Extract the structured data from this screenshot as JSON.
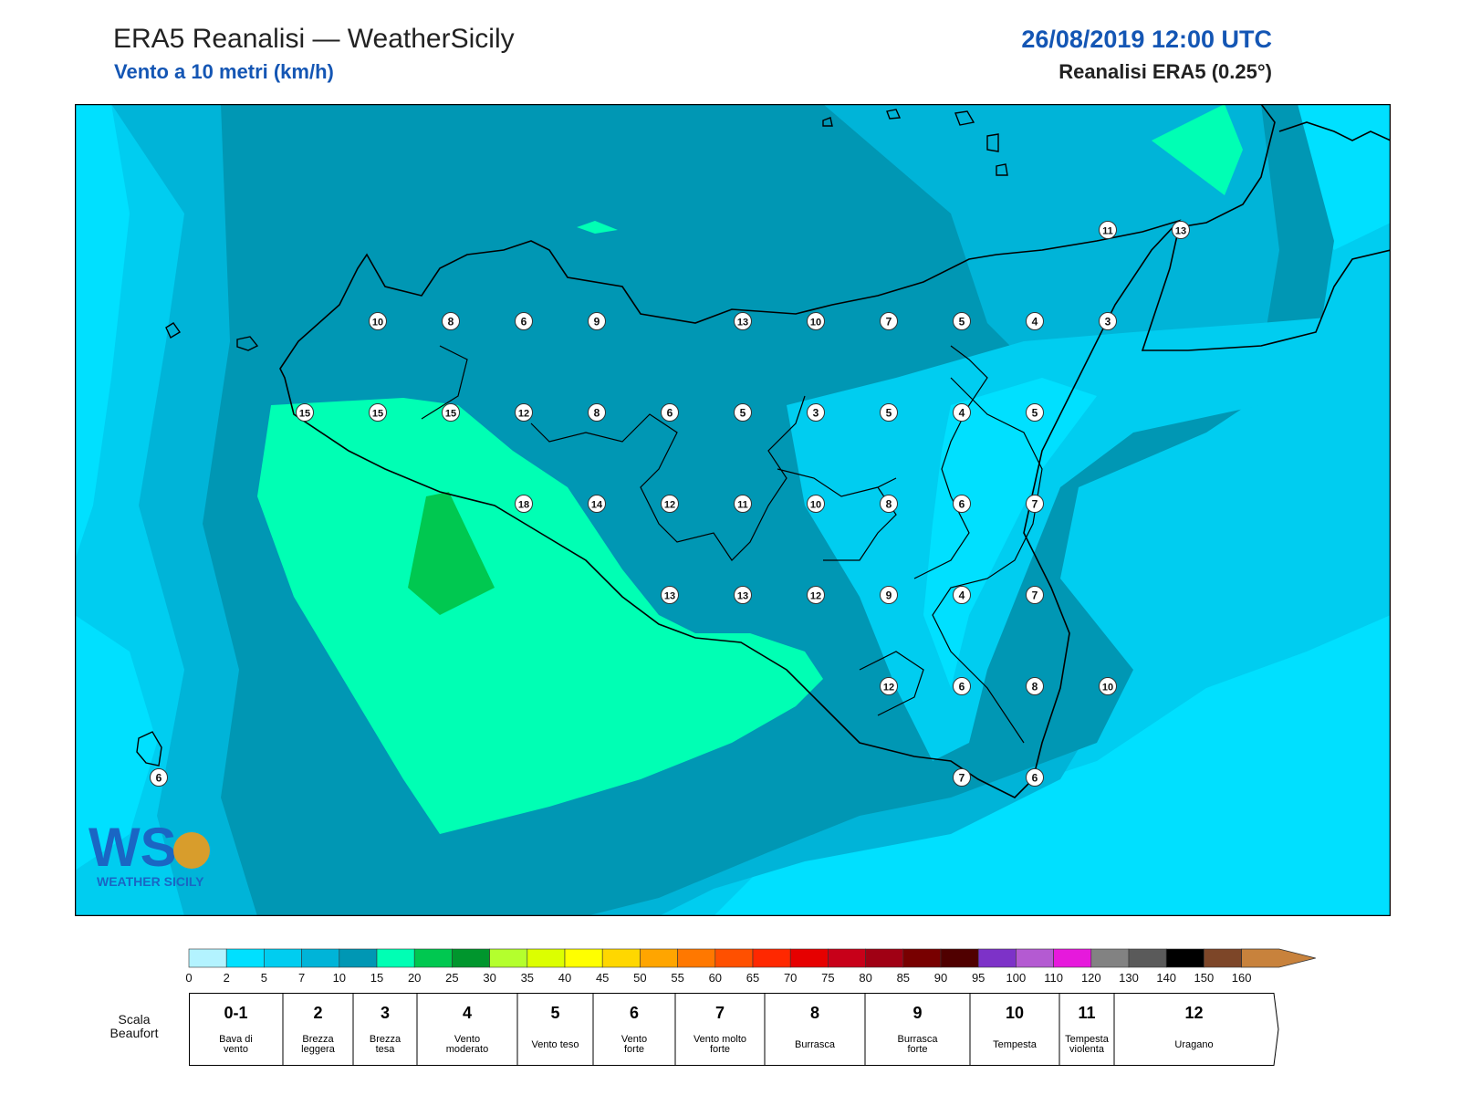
{
  "header": {
    "title": "ERA5 Reanalisi — WeatherSicily",
    "subtitle": "Vento a 10 metri (km/h)",
    "datetime": "26/08/2019 12:00 UTC",
    "model": "Reanalisi ERA5 (0.25°)"
  },
  "map": {
    "colors": {
      "sea_light": "#00dfff",
      "band_0_2": "#b3f3ff",
      "band_2_5": "#00e0ff",
      "band_5_7": "#00cdf0",
      "band_7_10": "#00b4d8",
      "band_10_15": "#0097b4",
      "band_15_20": "#00ffb4",
      "band_20_25": "#00c850",
      "band_25_30": "#00962d",
      "coast": "#000000"
    },
    "station_values": [
      {
        "value": "10"
      },
      {
        "value": "8"
      },
      {
        "value": "6"
      },
      {
        "value": "9"
      },
      {
        "value": "13"
      },
      {
        "value": "10"
      },
      {
        "value": "7"
      },
      {
        "value": "5"
      },
      {
        "value": "4"
      },
      {
        "value": "3"
      },
      {
        "value": "11"
      },
      {
        "value": "13"
      },
      {
        "value": "15"
      },
      {
        "value": "15"
      },
      {
        "value": "15"
      },
      {
        "value": "12"
      },
      {
        "value": "8"
      },
      {
        "value": "6"
      },
      {
        "value": "5"
      },
      {
        "value": "3"
      },
      {
        "value": "5"
      },
      {
        "value": "4"
      },
      {
        "value": "5"
      },
      {
        "value": "18"
      },
      {
        "value": "14"
      },
      {
        "value": "12"
      },
      {
        "value": "11"
      },
      {
        "value": "10"
      },
      {
        "value": "8"
      },
      {
        "value": "6"
      },
      {
        "value": "7"
      },
      {
        "value": "13"
      },
      {
        "value": "13"
      },
      {
        "value": "12"
      },
      {
        "value": "9"
      },
      {
        "value": "4"
      },
      {
        "value": "7"
      },
      {
        "value": "12"
      },
      {
        "value": "6"
      },
      {
        "value": "8"
      },
      {
        "value": "10"
      },
      {
        "value": "7"
      },
      {
        "value": "6"
      },
      {
        "value": "6"
      }
    ]
  },
  "logo": {
    "letters": "WS",
    "text": "WEATHER SICILY"
  },
  "legend": {
    "ticks": [
      "0",
      "2",
      "5",
      "7",
      "10",
      "15",
      "20",
      "25",
      "30",
      "35",
      "40",
      "45",
      "50",
      "55",
      "60",
      "65",
      "70",
      "75",
      "80",
      "85",
      "90",
      "95",
      "100",
      "110",
      "120",
      "130",
      "140",
      "150",
      "160"
    ],
    "colors": [
      "#b3f3ff",
      "#00e0ff",
      "#00cdf0",
      "#00b4d8",
      "#0097b4",
      "#00ffb4",
      "#00c850",
      "#00962d",
      "#b4ff2d",
      "#dcff00",
      "#ffff00",
      "#ffd700",
      "#ffa500",
      "#ff7800",
      "#ff5000",
      "#ff2800",
      "#e60000",
      "#c80019",
      "#a00014",
      "#780000",
      "#500000",
      "#7d32c8",
      "#b45ad2",
      "#e619dc",
      "#828282",
      "#5a5a5a",
      "#000000",
      "#7d4628",
      "#c8823c"
    ],
    "scale_label": "Scala Beaufort",
    "beaufort": [
      {
        "num": "0-1",
        "label": "Bava di vento"
      },
      {
        "num": "2",
        "label": "Brezza leggera"
      },
      {
        "num": "3",
        "label": "Brezza tesa"
      },
      {
        "num": "4",
        "label": "Vento moderato"
      },
      {
        "num": "5",
        "label": "Vento teso"
      },
      {
        "num": "6",
        "label": "Vento forte"
      },
      {
        "num": "7",
        "label": "Vento molto forte"
      },
      {
        "num": "8",
        "label": "Burrasca"
      },
      {
        "num": "9",
        "label": "Burrasca forte"
      },
      {
        "num": "10",
        "label": "Tempesta"
      },
      {
        "num": "11",
        "label": "Tempesta violenta"
      },
      {
        "num": "12",
        "label": "Uragano"
      }
    ]
  }
}
